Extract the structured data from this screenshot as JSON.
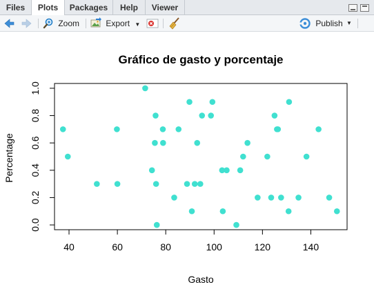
{
  "tabs": [
    {
      "label": "Files",
      "active": false
    },
    {
      "label": "Plots",
      "active": true
    },
    {
      "label": "Packages",
      "active": false
    },
    {
      "label": "Help",
      "active": false
    },
    {
      "label": "Viewer",
      "active": false
    }
  ],
  "toolbar": {
    "zoom_label": "Zoom",
    "export_label": "Export",
    "publish_label": "Publish"
  },
  "colors": {
    "points": "#40e0d0",
    "accent_blue": "#3d8ed8"
  },
  "chart_data": {
    "type": "scatter",
    "title": "Gráfico de gasto y porcentaje",
    "xlabel": "Gasto",
    "ylabel": "Percentage",
    "xlim": [
      34,
      155
    ],
    "ylim": [
      -0.035,
      1.035
    ],
    "xticks": [
      40,
      60,
      80,
      100,
      120,
      140
    ],
    "yticks": [
      0.0,
      0.2,
      0.4,
      0.6,
      0.8,
      1.0
    ],
    "xtick_labels": [
      "40",
      "60",
      "80",
      "100",
      "120",
      "140"
    ],
    "ytick_labels": [
      "0.0",
      "0.2",
      "0.4",
      "0.6",
      "0.8",
      "1.0"
    ],
    "grid": false,
    "legend": "none",
    "points": [
      {
        "x": 37.5,
        "y": 0.7
      },
      {
        "x": 39.5,
        "y": 0.5
      },
      {
        "x": 51.5,
        "y": 0.3
      },
      {
        "x": 59.8,
        "y": 0.7
      },
      {
        "x": 60.0,
        "y": 0.3
      },
      {
        "x": 71.5,
        "y": 1.0
      },
      {
        "x": 74.3,
        "y": 0.4
      },
      {
        "x": 75.5,
        "y": 0.6
      },
      {
        "x": 75.8,
        "y": 0.8
      },
      {
        "x": 76.0,
        "y": 0.3
      },
      {
        "x": 76.3,
        "y": 0.0
      },
      {
        "x": 78.8,
        "y": 0.7
      },
      {
        "x": 78.9,
        "y": 0.6
      },
      {
        "x": 83.5,
        "y": 0.2
      },
      {
        "x": 85.3,
        "y": 0.7
      },
      {
        "x": 88.8,
        "y": 0.3
      },
      {
        "x": 89.8,
        "y": 0.9
      },
      {
        "x": 90.8,
        "y": 0.1
      },
      {
        "x": 92.0,
        "y": 0.3
      },
      {
        "x": 93.0,
        "y": 0.6
      },
      {
        "x": 94.3,
        "y": 0.3
      },
      {
        "x": 95.0,
        "y": 0.8
      },
      {
        "x": 98.7,
        "y": 0.8
      },
      {
        "x": 99.3,
        "y": 0.9
      },
      {
        "x": 103.3,
        "y": 0.4
      },
      {
        "x": 103.6,
        "y": 0.1
      },
      {
        "x": 105.2,
        "y": 0.4
      },
      {
        "x": 109.2,
        "y": 0.0
      },
      {
        "x": 110.8,
        "y": 0.4
      },
      {
        "x": 112.0,
        "y": 0.5
      },
      {
        "x": 113.8,
        "y": 0.6
      },
      {
        "x": 118.0,
        "y": 0.2
      },
      {
        "x": 122.0,
        "y": 0.5
      },
      {
        "x": 123.6,
        "y": 0.2
      },
      {
        "x": 125.0,
        "y": 0.8
      },
      {
        "x": 126.0,
        "y": 0.7
      },
      {
        "x": 126.4,
        "y": 0.7
      },
      {
        "x": 127.7,
        "y": 0.2
      },
      {
        "x": 130.8,
        "y": 0.1
      },
      {
        "x": 131.0,
        "y": 0.9
      },
      {
        "x": 134.9,
        "y": 0.2
      },
      {
        "x": 138.2,
        "y": 0.5
      },
      {
        "x": 143.2,
        "y": 0.7
      },
      {
        "x": 147.6,
        "y": 0.2
      },
      {
        "x": 150.8,
        "y": 0.1
      }
    ]
  }
}
